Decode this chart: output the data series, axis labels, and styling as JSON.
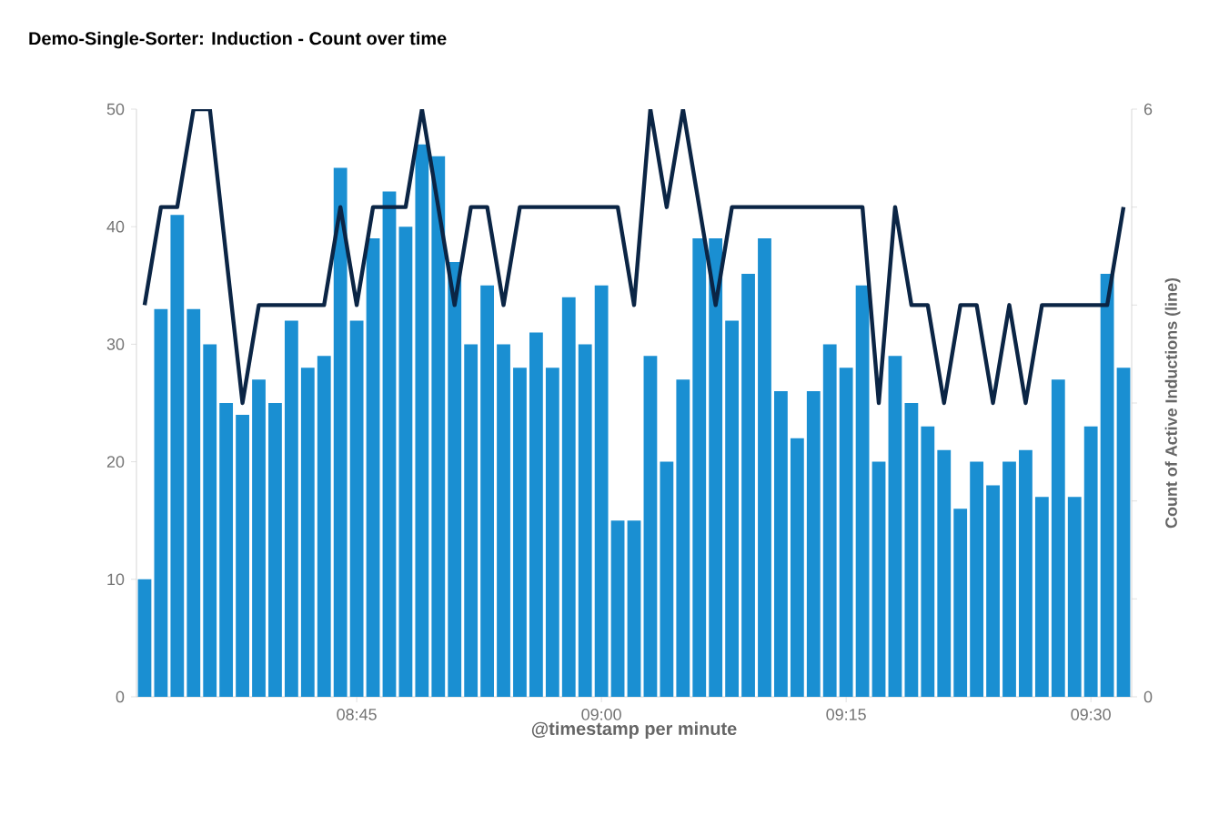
{
  "chart_data": {
    "type": "bar",
    "title": "Demo-Single-Sorter: Induction - Count over time",
    "xlabel": "@timestamp per minute",
    "y2label": "Count of Active Inductions (line)",
    "categories": [
      null,
      null,
      null,
      null,
      null,
      null,
      null,
      null,
      null,
      null,
      null,
      null,
      null,
      "08:45",
      null,
      null,
      null,
      null,
      null,
      null,
      null,
      null,
      null,
      null,
      null,
      null,
      null,
      null,
      "09:00",
      null,
      null,
      null,
      null,
      null,
      null,
      null,
      null,
      null,
      null,
      null,
      null,
      null,
      null,
      "09:15",
      null,
      null,
      null,
      null,
      null,
      null,
      null,
      null,
      null,
      null,
      null,
      null,
      null,
      null,
      "09:30",
      null,
      null
    ],
    "series": [
      {
        "color": "#1a8fd2",
        "values": [
          10,
          33,
          41,
          33,
          30,
          25,
          24,
          27,
          25,
          32,
          28,
          29,
          45,
          32,
          39,
          43,
          40,
          47,
          46,
          37,
          30,
          35,
          30,
          28,
          31,
          28,
          34,
          30,
          35,
          15,
          15,
          29,
          20,
          27,
          39,
          39,
          32,
          36,
          39,
          26,
          22,
          26,
          30,
          28,
          35,
          20,
          29,
          25,
          23,
          21,
          16,
          20,
          18,
          20,
          21,
          17,
          27,
          17,
          23,
          36,
          28
        ]
      },
      {
        "type": "line",
        "axis": "y2",
        "color": "#0b2545",
        "values": [
          4,
          5,
          5,
          6,
          6,
          4.5,
          3,
          4,
          4,
          4,
          4,
          4,
          5,
          4,
          5,
          5,
          5,
          6,
          5,
          4,
          5,
          5,
          4,
          5,
          5,
          5,
          5,
          5,
          5,
          5,
          4,
          6,
          5,
          6,
          5,
          4,
          5,
          5,
          5,
          5,
          5,
          5,
          5,
          5,
          5,
          3,
          5,
          4,
          4,
          3,
          4,
          4,
          3,
          4,
          3,
          4,
          4,
          4,
          4,
          4,
          5
        ]
      }
    ],
    "ylim": [
      0,
      50
    ],
    "yticks": [
      0,
      10,
      20,
      30,
      40,
      50
    ],
    "y2lim": [
      0,
      6
    ],
    "y2ticks": [
      0,
      {
        "value": 1,
        "label": null
      },
      {
        "value": 2,
        "label": null
      },
      {
        "value": 3,
        "label": null
      },
      {
        "value": 4,
        "label": null
      },
      {
        "value": 5,
        "label": null
      },
      6
    ]
  }
}
